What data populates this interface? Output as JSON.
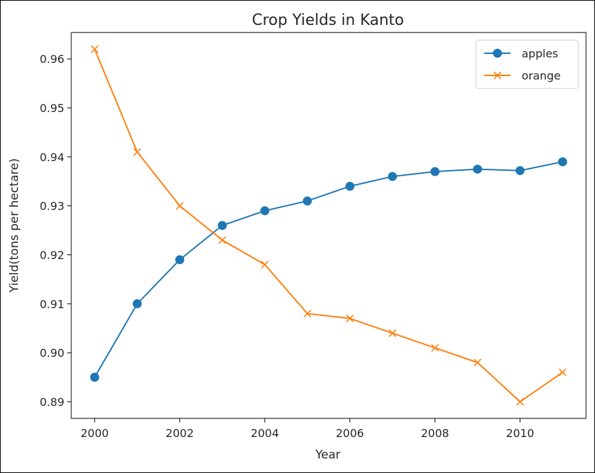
{
  "chart_data": {
    "type": "line",
    "title": "Crop Yields in Kanto",
    "xlabel": "Year",
    "ylabel": "Yield(tons per hectare)",
    "x": [
      2000,
      2001,
      2002,
      2003,
      2004,
      2005,
      2006,
      2007,
      2008,
      2009,
      2010,
      2011
    ],
    "series": [
      {
        "name": "apples",
        "color": "#1f77b4",
        "marker": "circle",
        "values": [
          0.895,
          0.91,
          0.919,
          0.926,
          0.929,
          0.931,
          0.934,
          0.936,
          0.937,
          0.9375,
          0.9372,
          0.939
        ]
      },
      {
        "name": "orange",
        "color": "#ff7f0e",
        "marker": "x",
        "values": [
          0.962,
          0.941,
          0.93,
          0.923,
          0.918,
          0.908,
          0.907,
          0.904,
          0.901,
          0.898,
          0.89,
          0.896
        ]
      }
    ],
    "xticks": [
      "2000",
      "2002",
      "2004",
      "2006",
      "2008",
      "2010"
    ],
    "yticks": [
      "0.89",
      "0.90",
      "0.91",
      "0.92",
      "0.93",
      "0.94",
      "0.95",
      "0.96"
    ],
    "xlim": [
      1999.45,
      2011.55
    ],
    "ylim": [
      0.8866,
      0.9654
    ],
    "grid": false,
    "legend_position": "top-right"
  }
}
